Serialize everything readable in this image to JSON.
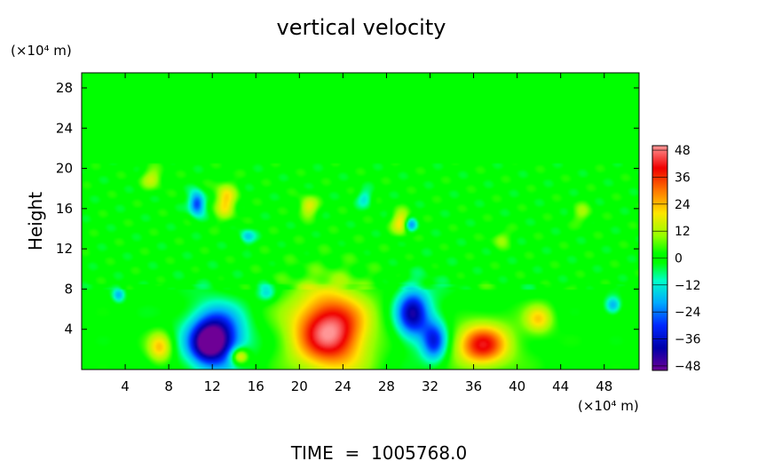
{
  "chart_data": {
    "type": "heatmap",
    "title": "vertical velocity",
    "ylabel": "Height",
    "x_unit_label": "(×10⁴ m)",
    "y_unit_label": "(×10⁴ m)",
    "x_ticks": [
      4,
      8,
      12,
      16,
      20,
      24,
      28,
      32,
      36,
      40,
      44,
      48
    ],
    "y_ticks": [
      4,
      8,
      12,
      16,
      20,
      24,
      28
    ],
    "xlim": [
      0,
      51.2
    ],
    "ylim": [
      0,
      29.5
    ],
    "colorbar": {
      "ticks": [
        48,
        36,
        24,
        12,
        0,
        -12,
        -24,
        -36,
        -48
      ],
      "range": [
        -50,
        50
      ]
    },
    "footer": "TIME  =  1005768.0",
    "features": [
      {
        "x": 22.8,
        "y": 3.8,
        "sx": 2.2,
        "sy": 2.6,
        "v": 40
      },
      {
        "x": 22.8,
        "y": 4.0,
        "sx": 4.5,
        "sy": 3.6,
        "v": 10
      },
      {
        "x": 36.8,
        "y": 2.4,
        "sx": 1.6,
        "sy": 1.4,
        "v": 32
      },
      {
        "x": 36.8,
        "y": 2.6,
        "sx": 3.2,
        "sy": 2.4,
        "v": 8
      },
      {
        "x": 7.2,
        "y": 2.2,
        "sx": 0.8,
        "sy": 1.1,
        "v": 24
      },
      {
        "x": 14.5,
        "y": 1.3,
        "sx": 0.6,
        "sy": 0.6,
        "v": 30
      },
      {
        "x": 42.0,
        "y": 5.0,
        "sx": 0.9,
        "sy": 1.0,
        "v": 20
      },
      {
        "x": 12.3,
        "y": 3.2,
        "sx": 1.5,
        "sy": 1.8,
        "v": -42
      },
      {
        "x": 11.4,
        "y": 2.4,
        "sx": 1.0,
        "sy": 1.2,
        "v": -20
      },
      {
        "x": 12.8,
        "y": 2.8,
        "sx": 3.0,
        "sy": 3.0,
        "v": -10
      },
      {
        "x": 30.4,
        "y": 5.6,
        "sx": 1.0,
        "sy": 1.6,
        "v": -36
      },
      {
        "x": 32.4,
        "y": 2.8,
        "sx": 0.8,
        "sy": 1.4,
        "v": -30
      },
      {
        "x": 31.0,
        "y": 4.4,
        "sx": 2.5,
        "sy": 3.0,
        "v": -8
      },
      {
        "x": 10.6,
        "y": 16.5,
        "sx": 0.5,
        "sy": 0.8,
        "v": -32
      },
      {
        "x": 13.2,
        "y": 16.8,
        "sx": 0.7,
        "sy": 1.2,
        "v": 22
      },
      {
        "x": 20.8,
        "y": 16.2,
        "sx": 0.6,
        "sy": 0.7,
        "v": 18
      },
      {
        "x": 29.4,
        "y": 14.6,
        "sx": 0.6,
        "sy": 0.8,
        "v": 22
      },
      {
        "x": 30.2,
        "y": 14.4,
        "sx": 0.4,
        "sy": 0.5,
        "v": -25
      },
      {
        "x": 6.5,
        "y": 19.0,
        "sx": 0.7,
        "sy": 0.7,
        "v": 14
      },
      {
        "x": 15.2,
        "y": 13.2,
        "sx": 0.5,
        "sy": 0.5,
        "v": -16
      },
      {
        "x": 3.4,
        "y": 7.4,
        "sx": 0.4,
        "sy": 0.5,
        "v": -18
      },
      {
        "x": 48.8,
        "y": 6.4,
        "sx": 0.5,
        "sy": 0.6,
        "v": -20
      },
      {
        "x": 26.0,
        "y": 17.0,
        "sx": 0.5,
        "sy": 0.6,
        "v": -12
      },
      {
        "x": 38.5,
        "y": 13.0,
        "sx": 0.6,
        "sy": 0.6,
        "v": 10
      },
      {
        "x": 46.0,
        "y": 15.5,
        "sx": 0.6,
        "sy": 0.7,
        "v": 10
      },
      {
        "x": 17.0,
        "y": 7.6,
        "sx": 0.6,
        "sy": 0.6,
        "v": -14
      }
    ]
  }
}
